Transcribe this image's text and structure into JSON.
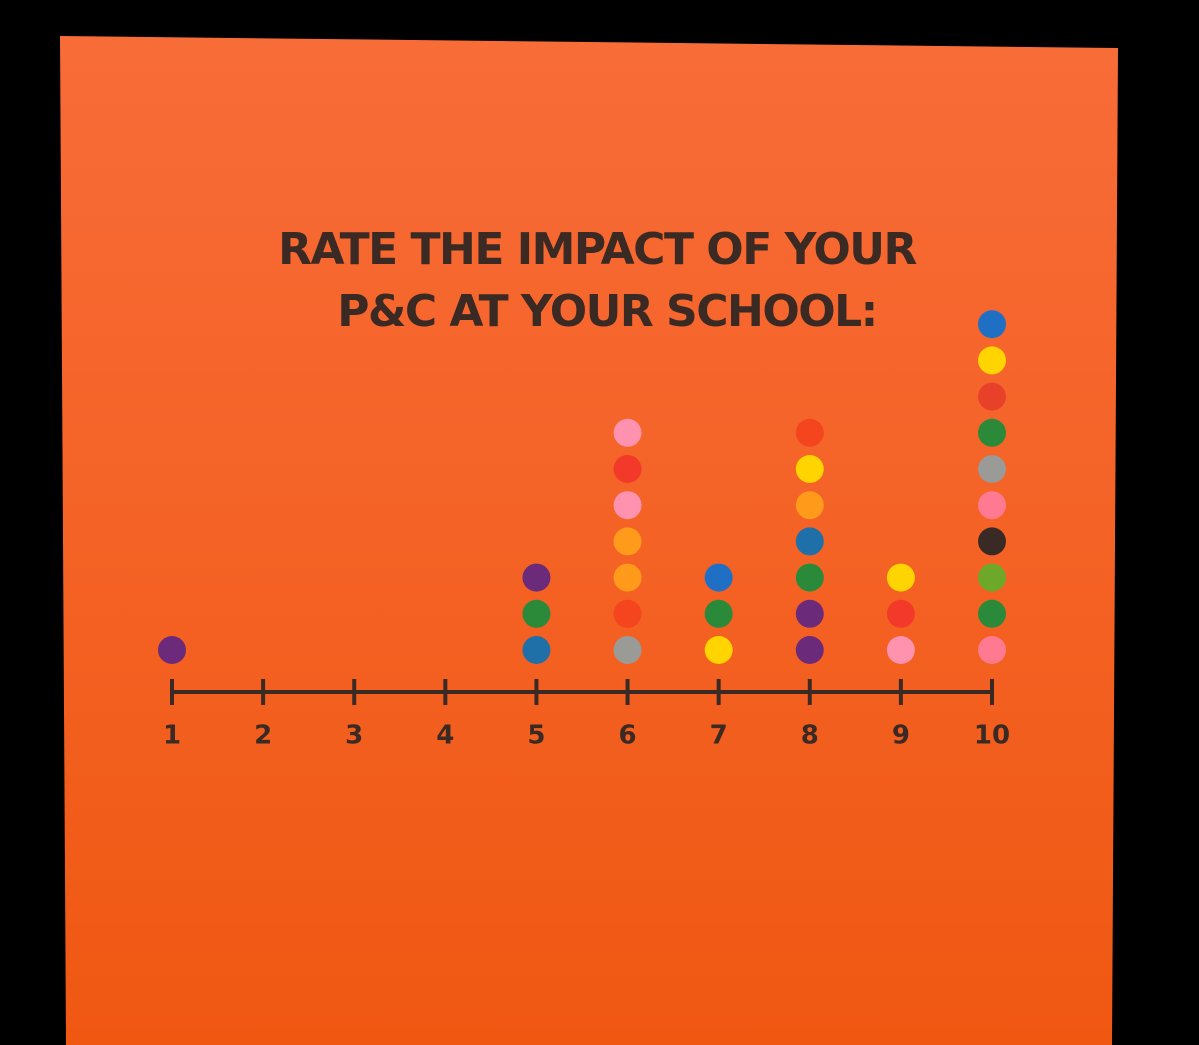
{
  "chart_data": {
    "type": "dot",
    "title": [
      "RATE THE IMPACT OF YOUR",
      "P&C  AT YOUR SCHOOL:"
    ],
    "categories": [
      "1",
      "2",
      "3",
      "4",
      "5",
      "6",
      "7",
      "8",
      "9",
      "10"
    ],
    "values": [
      1,
      0,
      0,
      0,
      3,
      7,
      3,
      7,
      3,
      10
    ],
    "dot_colors": [
      [
        "#6b2a7a"
      ],
      [],
      [],
      [],
      [
        "#1f6fa8",
        "#2a8a3a",
        "#6b2a7a"
      ],
      [
        "#9a9a96",
        "#f4451f",
        "#ff9a1a",
        "#ff9a1a",
        "#ff92ae",
        "#f33a2a",
        "#ff92ae"
      ],
      [
        "#ffd400",
        "#2a8a3a",
        "#1f6fc4"
      ],
      [
        "#6b2a7a",
        "#6b2a7a",
        "#2a8a3a",
        "#1f6fa8",
        "#ff9a1a",
        "#ffd400",
        "#f4451f"
      ],
      [
        "#ff92ae",
        "#f33a2a",
        "#ffd400"
      ],
      [
        "#ff7a90",
        "#2a8a3a",
        "#6ea82a",
        "#3a2a25",
        "#ff7a90",
        "#9a9a96",
        "#2a8a3a",
        "#e8412a",
        "#ffd400",
        "#1f6fc4"
      ]
    ],
    "axis_color": "#3b2a24"
  }
}
